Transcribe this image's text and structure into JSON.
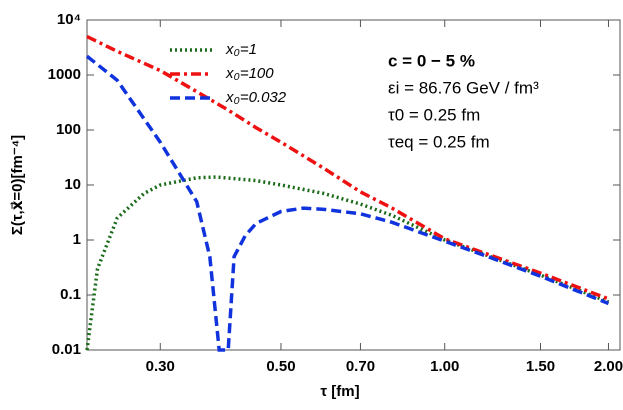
{
  "chart_data": {
    "type": "line",
    "x_label": "τ [fm]",
    "y_label": "Σ(τ,x⃗=0)[fm⁻⁴]",
    "xlog": true,
    "ylog": true,
    "xlim": [
      0.22,
      2.1
    ],
    "ylim": [
      0.01,
      10000
    ],
    "xticks": [
      {
        "value": 0.3,
        "label": "0.30"
      },
      {
        "value": 0.5,
        "label": "0.50"
      },
      {
        "value": 0.7,
        "label": "0.70"
      },
      {
        "value": 1.0,
        "label": "1.00"
      },
      {
        "value": 1.5,
        "label": "1.50"
      },
      {
        "value": 2.0,
        "label": "2.00"
      }
    ],
    "yticks": [
      0.01,
      0.1,
      1,
      10,
      100,
      1000,
      {
        "value": 10000,
        "label": "10⁴"
      }
    ],
    "annotations": [
      "c = 0 − 5 %",
      "εi = 86.76 GeV / fm³",
      "τ0 = 0.25 fm",
      "τeq = 0.25 fm"
    ],
    "series": [
      {
        "name": "x₀=1",
        "color": "#1b6b1b",
        "dash": "2,3",
        "x": [
          0.22,
          0.23,
          0.25,
          0.28,
          0.3,
          0.35,
          0.38,
          0.45,
          0.5,
          0.6,
          0.7,
          0.8,
          1.0,
          1.2,
          1.5,
          2.0
        ],
        "values": [
          0.01,
          0.3,
          2.5,
          7,
          10,
          13.5,
          14,
          12,
          10,
          7,
          4.5,
          2.8,
          1.0,
          0.52,
          0.23,
          0.075
        ]
      },
      {
        "name": "x₀=100",
        "color": "#ee1111",
        "dash": "10,4,3,4",
        "x": [
          0.22,
          0.25,
          0.3,
          0.35,
          0.4,
          0.45,
          0.5,
          0.6,
          0.7,
          0.8,
          1.0,
          1.2,
          1.5,
          2.0
        ],
        "values": [
          5000,
          2700,
          1200,
          500,
          230,
          110,
          60,
          20,
          7.5,
          3.8,
          1.05,
          0.55,
          0.25,
          0.085
        ]
      },
      {
        "name": "x₀=0.032",
        "color": "#1133dd",
        "dash": "10,5",
        "x": [
          0.22,
          0.25,
          0.3,
          0.35,
          0.37,
          0.385,
          0.4,
          0.41,
          0.43,
          0.45,
          0.5,
          0.55,
          0.6,
          0.7,
          0.8,
          1.0,
          1.2,
          1.5,
          2.0
        ],
        "values": [
          2200,
          800,
          60,
          5,
          0.5,
          0.01,
          0.01,
          0.5,
          1.2,
          2,
          3.3,
          3.8,
          3.6,
          3.0,
          2.1,
          0.95,
          0.5,
          0.22,
          0.07
        ]
      }
    ]
  }
}
